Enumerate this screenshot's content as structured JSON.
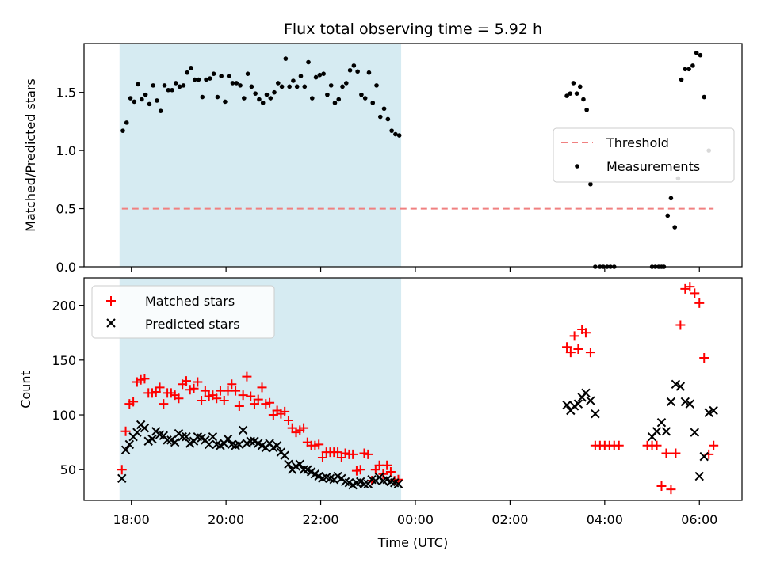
{
  "title": "Flux total observing time = 5.92 h",
  "chart_data": [
    {
      "type": "scatter",
      "panel": "top",
      "ylabel": "Matched/Predicted stars",
      "ylim": [
        0,
        1.92
      ],
      "yticks": [
        0.0,
        0.5,
        1.0,
        1.5
      ],
      "ytick_labels": [
        "0.0",
        "0.5",
        "1.0",
        "1.5"
      ],
      "grid": false,
      "legend_position": "center-right",
      "threshold": {
        "name": "Threshold",
        "value": 0.5,
        "x_range": [
          17.8,
          30.3
        ],
        "color": "#f08080",
        "style": "dashed"
      },
      "shaded_region": {
        "x_range": [
          17.75,
          23.7
        ],
        "color": "#add8e6"
      },
      "series": [
        {
          "name": "Measurements",
          "marker": "dot",
          "color": "#000000",
          "x": [
            17.82,
            17.9,
            17.98,
            18.06,
            18.14,
            18.22,
            18.3,
            18.38,
            18.46,
            18.54,
            18.62,
            18.7,
            18.78,
            18.86,
            18.94,
            19.02,
            19.1,
            19.18,
            19.26,
            19.34,
            19.42,
            19.5,
            19.58,
            19.66,
            19.74,
            19.82,
            19.9,
            19.98,
            20.06,
            20.14,
            20.22,
            20.3,
            20.38,
            20.46,
            20.54,
            20.62,
            20.7,
            20.78,
            20.86,
            20.94,
            21.02,
            21.1,
            21.18,
            21.26,
            21.34,
            21.42,
            21.5,
            21.58,
            21.66,
            21.74,
            21.82,
            21.9,
            21.98,
            22.06,
            22.14,
            22.22,
            22.3,
            22.38,
            22.46,
            22.54,
            22.62,
            22.7,
            22.78,
            22.86,
            22.94,
            23.02,
            23.1,
            23.18,
            23.26,
            23.34,
            23.42,
            23.5,
            23.58,
            23.66,
            27.2,
            27.27,
            27.34,
            27.41,
            27.48,
            27.55,
            27.62,
            27.7,
            27.8,
            27.9,
            27.97,
            28.05,
            28.12,
            28.2,
            29.0,
            29.07,
            29.14,
            29.2,
            29.25,
            29.33,
            29.4,
            29.48,
            29.55,
            29.62,
            29.7,
            29.78,
            29.86,
            29.94,
            30.02,
            30.1,
            30.2
          ],
          "y": [
            1.17,
            1.24,
            1.45,
            1.42,
            1.57,
            1.44,
            1.48,
            1.4,
            1.56,
            1.43,
            1.34,
            1.56,
            1.52,
            1.52,
            1.58,
            1.55,
            1.56,
            1.67,
            1.71,
            1.61,
            1.61,
            1.46,
            1.61,
            1.62,
            1.66,
            1.46,
            1.64,
            1.42,
            1.64,
            1.58,
            1.58,
            1.56,
            1.45,
            1.66,
            1.55,
            1.49,
            1.44,
            1.41,
            1.48,
            1.45,
            1.5,
            1.58,
            1.55,
            1.79,
            1.55,
            1.6,
            1.55,
            1.64,
            1.55,
            1.76,
            1.45,
            1.63,
            1.65,
            1.66,
            1.48,
            1.56,
            1.41,
            1.44,
            1.55,
            1.58,
            1.69,
            1.73,
            1.68,
            1.48,
            1.45,
            1.67,
            1.41,
            1.56,
            1.29,
            1.36,
            1.27,
            1.17,
            1.14,
            1.13,
            1.47,
            1.49,
            1.58,
            1.49,
            1.55,
            1.44,
            1.35,
            0.71,
            0.0,
            0.0,
            0.0,
            0.0,
            0.0,
            0.0,
            0.0,
            0.0,
            0.0,
            0.0,
            0.0,
            0.44,
            0.59,
            0.34,
            0.76,
            1.61,
            1.7,
            1.7,
            1.73,
            1.84,
            1.82,
            1.46,
            1.0
          ]
        }
      ]
    },
    {
      "type": "scatter",
      "panel": "bottom",
      "xlabel": "Time (UTC)",
      "ylabel": "Count",
      "xlim": [
        17.0,
        30.9
      ],
      "ylim": [
        22,
        225
      ],
      "yticks": [
        50,
        100,
        150,
        200
      ],
      "ytick_labels": [
        "50",
        "100",
        "150",
        "200"
      ],
      "xticks": [
        18,
        20,
        22,
        24,
        26,
        28,
        30
      ],
      "xtick_labels": [
        "18:00",
        "20:00",
        "22:00",
        "00:00",
        "02:00",
        "04:00",
        "06:00"
      ],
      "grid": false,
      "legend_position": "upper-left",
      "shaded_region": {
        "x_range": [
          17.75,
          23.7
        ],
        "color": "#add8e6"
      },
      "series": [
        {
          "name": "Matched stars",
          "marker": "plus",
          "color": "#ff0000",
          "x": [
            17.8,
            17.88,
            17.96,
            18.04,
            18.12,
            18.2,
            18.28,
            18.36,
            18.44,
            18.52,
            18.6,
            18.68,
            18.76,
            18.84,
            18.92,
            19.0,
            19.08,
            19.16,
            19.24,
            19.32,
            19.4,
            19.48,
            19.56,
            19.64,
            19.72,
            19.8,
            19.88,
            19.96,
            20.04,
            20.12,
            20.2,
            20.28,
            20.36,
            20.44,
            20.52,
            20.6,
            20.68,
            20.76,
            20.84,
            20.92,
            21.0,
            21.08,
            21.16,
            21.24,
            21.32,
            21.4,
            21.48,
            21.56,
            21.64,
            21.72,
            21.8,
            21.88,
            21.96,
            22.04,
            22.12,
            22.2,
            22.28,
            22.36,
            22.44,
            22.52,
            22.6,
            22.68,
            22.76,
            22.84,
            22.92,
            23.0,
            23.08,
            23.16,
            23.24,
            23.32,
            23.4,
            23.48,
            23.56,
            23.64,
            27.2,
            27.28,
            27.36,
            27.44,
            27.52,
            27.6,
            27.7,
            27.8,
            27.9,
            28.0,
            28.1,
            28.2,
            28.3,
            28.9,
            29.0,
            29.1,
            29.2,
            29.3,
            29.4,
            29.5,
            29.6,
            29.7,
            29.8,
            29.9,
            30.0,
            30.1,
            30.2,
            30.3
          ],
          "y": [
            50,
            85,
            110,
            112,
            130,
            132,
            133,
            120,
            120,
            121,
            125,
            110,
            120,
            120,
            118,
            115,
            128,
            131,
            123,
            124,
            130,
            113,
            122,
            117,
            118,
            115,
            122,
            113,
            122,
            128,
            122,
            108,
            118,
            135,
            117,
            110,
            114,
            125,
            110,
            111,
            100,
            104,
            101,
            103,
            95,
            88,
            84,
            86,
            88,
            75,
            72,
            72,
            73,
            61,
            66,
            66,
            66,
            66,
            61,
            65,
            64,
            64,
            49,
            50,
            65,
            64,
            40,
            50,
            54,
            46,
            54,
            48,
            40,
            41,
            162,
            157,
            172,
            160,
            178,
            175,
            157,
            72,
            72,
            72,
            72,
            72,
            72,
            72,
            72,
            72,
            35,
            65,
            32,
            65,
            182,
            215,
            217,
            211,
            202,
            152,
            64,
            72
          ]
        },
        {
          "name": "Predicted stars",
          "marker": "x",
          "color": "#000000",
          "x": [
            17.8,
            17.88,
            17.96,
            18.04,
            18.12,
            18.2,
            18.28,
            18.36,
            18.44,
            18.52,
            18.6,
            18.68,
            18.76,
            18.84,
            18.92,
            19.0,
            19.08,
            19.16,
            19.24,
            19.32,
            19.4,
            19.48,
            19.56,
            19.64,
            19.72,
            19.8,
            19.88,
            19.96,
            20.04,
            20.12,
            20.2,
            20.28,
            20.36,
            20.44,
            20.52,
            20.6,
            20.68,
            20.76,
            20.84,
            20.92,
            21.0,
            21.08,
            21.16,
            21.24,
            21.32,
            21.4,
            21.48,
            21.56,
            21.64,
            21.72,
            21.8,
            21.88,
            21.96,
            22.04,
            22.12,
            22.2,
            22.28,
            22.36,
            22.44,
            22.52,
            22.6,
            22.68,
            22.76,
            22.84,
            22.92,
            23.0,
            23.08,
            23.16,
            23.24,
            23.32,
            23.4,
            23.48,
            23.56,
            23.64,
            27.2,
            27.28,
            27.36,
            27.44,
            27.52,
            27.6,
            27.7,
            27.8,
            29.0,
            29.1,
            29.2,
            29.3,
            29.4,
            29.5,
            29.6,
            29.7,
            29.8,
            29.9,
            30.0,
            30.1,
            30.2,
            30.3
          ],
          "y": [
            42,
            68,
            73,
            80,
            84,
            91,
            88,
            76,
            78,
            85,
            82,
            81,
            77,
            77,
            75,
            83,
            80,
            80,
            74,
            76,
            80,
            79,
            77,
            73,
            80,
            73,
            72,
            74,
            78,
            73,
            72,
            73,
            86,
            74,
            76,
            76,
            74,
            72,
            70,
            74,
            70,
            72,
            66,
            63,
            55,
            50,
            53,
            55,
            50,
            50,
            48,
            46,
            44,
            42,
            43,
            42,
            41,
            44,
            42,
            39,
            38,
            36,
            38,
            39,
            37,
            37,
            41,
            40,
            43,
            40,
            41,
            39,
            38,
            37,
            109,
            104,
            108,
            110,
            116,
            120,
            113,
            101,
            80,
            85,
            93,
            85,
            112,
            128,
            126,
            112,
            110,
            84,
            44,
            62,
            102,
            104
          ]
        }
      ]
    }
  ]
}
